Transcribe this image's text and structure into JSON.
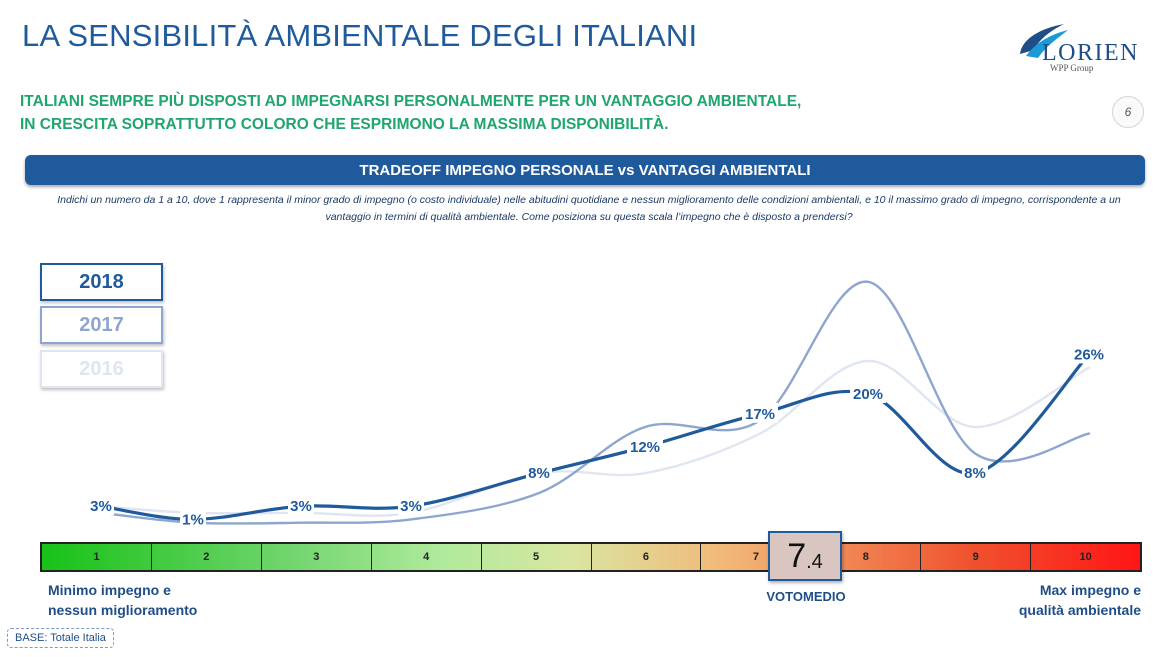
{
  "header": {
    "title": "LA SENSIBILITÀ AMBIENTALE DEGLI ITALIANI",
    "logo_text": "LORIEN",
    "logo_sub": "WPP Group",
    "page_number": "6",
    "headline_line1": "ITALIANI SEMPRE PIÙ DISPOSTI AD IMPEGNARSI PERSONALMENTE PER UN VANTAGGIO AMBIENTALE,",
    "headline_line2": "IN CRESCITA SOPRATTUTTO COLORO CHE ESPRIMONO LA MASSIMA DISPONIBILITÀ."
  },
  "section": {
    "banner": "TRADEOFF IMPEGNO PERSONALE vs VANTAGGI AMBIENTALI",
    "question": "Indichi un numero da 1 a 10, dove 1 rappresenta il minor grado di impegno (o costo individuale) nelle abitudini quotidiane e nessun miglioramento delle condizioni ambientali, e 10 il massimo grado di impegno, corrispondente a un vantaggio in termini di qualità ambientale. Come posiziona su questa scala l’impegno che è disposto a prendersi?"
  },
  "colors": {
    "s2018": "#1f5a9c",
    "s2017": "#8ea6cf",
    "s2016": "#dfe6f1",
    "headline": "#1fa56e"
  },
  "chart_data": {
    "type": "line",
    "categories": [
      "1",
      "2",
      "3",
      "4",
      "5",
      "6",
      "7",
      "8",
      "9",
      "10"
    ],
    "series": [
      {
        "name": "2018",
        "values": [
          3,
          1,
          3,
          3,
          8,
          12,
          17,
          20,
          8,
          26
        ],
        "labels": [
          "3%",
          "1%",
          "3%",
          "3%",
          "8%",
          "12%",
          "17%",
          "20%",
          "8%",
          "26%"
        ]
      },
      {
        "name": "2017",
        "values": [
          2,
          0.5,
          0.5,
          1,
          5,
          15,
          16,
          37,
          11,
          14
        ]
      },
      {
        "name": "2016",
        "values": [
          3,
          2,
          2,
          2,
          8,
          8,
          14,
          25,
          15,
          24
        ]
      }
    ],
    "ylim": [
      0,
      40
    ],
    "grid": false,
    "legend": "left"
  },
  "scale": {
    "ticks": [
      "1",
      "2",
      "3",
      "4",
      "5",
      "6",
      "7",
      "8",
      "9",
      "10"
    ],
    "min_label_1": "Minimo impegno e",
    "min_label_2": "nessun miglioramento",
    "max_label_1": "Max impegno e",
    "max_label_2": "qualità ambientale"
  },
  "vote": {
    "value": 7.4,
    "integer": "7",
    "decimal": ".4",
    "label": "VOTOMEDIO"
  },
  "footer": {
    "base": "BASE: Totale Italia"
  }
}
